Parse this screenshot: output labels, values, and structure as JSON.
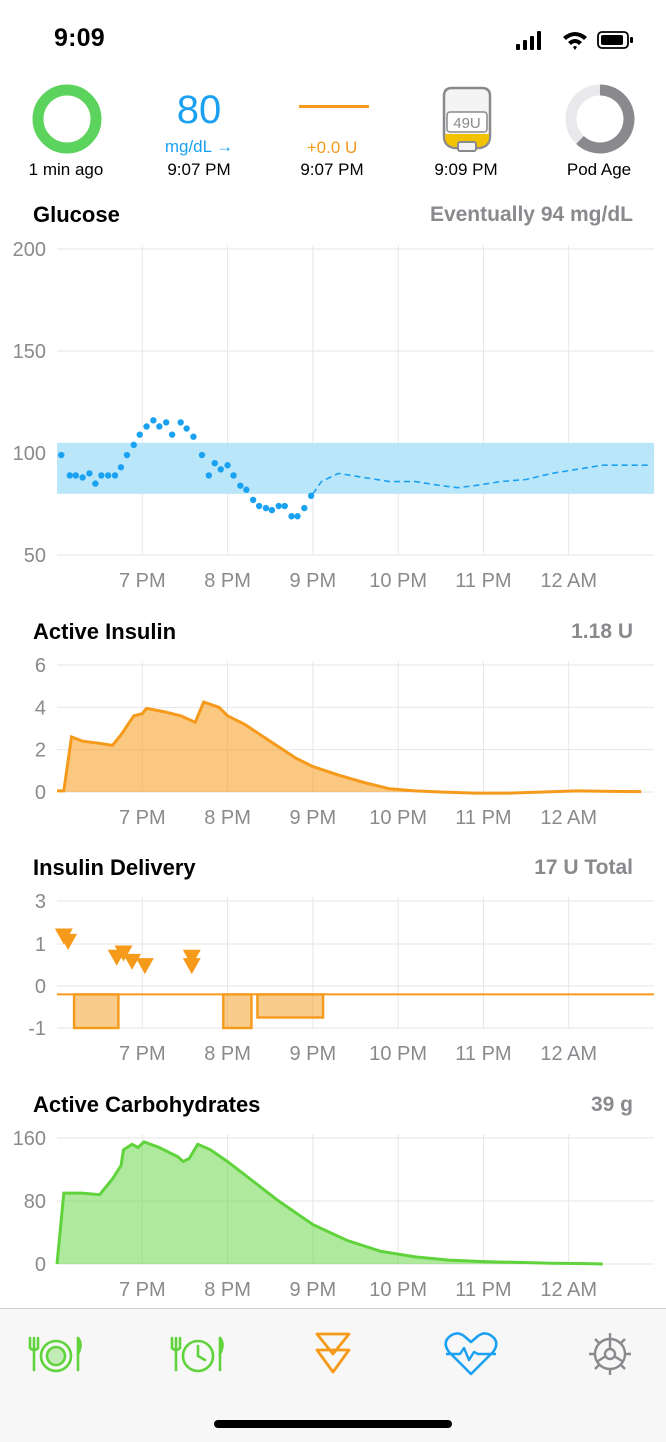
{
  "status_bar": {
    "time": "9:09"
  },
  "hud": {
    "loop": {
      "label": "1 min ago"
    },
    "glucose": {
      "value": "80",
      "unit": "mg/dL →",
      "time": "9:07 PM"
    },
    "basal": {
      "value": "+0.0 U",
      "time": "9:07 PM"
    },
    "reservoir": {
      "level": "49U",
      "time": "9:09 PM"
    },
    "pod": {
      "label": "Pod Age"
    }
  },
  "sections": {
    "glucose": {
      "title": "Glucose",
      "value": "Eventually 94 mg/dL"
    },
    "active_insulin": {
      "title": "Active Insulin",
      "value": "1.18 U"
    },
    "insulin_delivery": {
      "title": "Insulin Delivery",
      "value": "17 U Total"
    },
    "active_carbs": {
      "title": "Active Carbohydrates",
      "value": "39 g"
    }
  },
  "x_tick_labels": [
    "7 PM",
    "8 PM",
    "9 PM",
    "10 PM",
    "11 PM",
    "12 AM"
  ],
  "colors": {
    "glucose": "#1ba1f2",
    "insulin": "#f59a1a",
    "carbs": "#60d33c",
    "target_range": "#b3e3fa",
    "loop_ring": "#5cd35c"
  },
  "tab_bar": [
    {
      "name": "carb-entry-icon"
    },
    {
      "name": "carb-entry-clock-icon"
    },
    {
      "name": "bolus-icon"
    },
    {
      "name": "health-heart-icon"
    },
    {
      "name": "settings-gear-icon"
    }
  ],
  "chart_data": [
    {
      "type": "scatter",
      "title": "Glucose",
      "x_unit": "hours (6.0 = 6 PM, 12.0 = 12 AM)",
      "ylim": [
        50,
        200
      ],
      "yticks": [
        200,
        150,
        100,
        50
      ],
      "xticks": [
        "7 PM",
        "8 PM",
        "9 PM",
        "10 PM",
        "11 PM",
        "12 AM"
      ],
      "target_range": [
        80,
        105
      ],
      "series": [
        {
          "name": "readings",
          "style": "dots",
          "points": [
            [
              6.05,
              99
            ],
            [
              6.15,
              89
            ],
            [
              6.22,
              89
            ],
            [
              6.3,
              88
            ],
            [
              6.38,
              90
            ],
            [
              6.45,
              85
            ],
            [
              6.52,
              89
            ],
            [
              6.6,
              89
            ],
            [
              6.68,
              89
            ],
            [
              6.75,
              93
            ],
            [
              6.82,
              99
            ],
            [
              6.9,
              104
            ],
            [
              6.97,
              109
            ],
            [
              7.05,
              113
            ],
            [
              7.13,
              116
            ],
            [
              7.2,
              113
            ],
            [
              7.28,
              115
            ],
            [
              7.35,
              109
            ],
            [
              7.45,
              115
            ],
            [
              7.52,
              112
            ],
            [
              7.6,
              108
            ],
            [
              7.7,
              99
            ],
            [
              7.78,
              89
            ],
            [
              7.85,
              95
            ],
            [
              7.92,
              92
            ],
            [
              8.0,
              94
            ],
            [
              8.07,
              89
            ],
            [
              8.15,
              84
            ],
            [
              8.22,
              82
            ],
            [
              8.3,
              77
            ],
            [
              8.37,
              74
            ],
            [
              8.45,
              73
            ],
            [
              8.52,
              72
            ],
            [
              8.6,
              74
            ],
            [
              8.67,
              74
            ],
            [
              8.75,
              69
            ],
            [
              8.82,
              69
            ],
            [
              8.9,
              73
            ],
            [
              8.98,
              79
            ]
          ]
        },
        {
          "name": "prediction",
          "style": "dashed",
          "points": [
            [
              9.0,
              80
            ],
            [
              9.1,
              86
            ],
            [
              9.3,
              90
            ],
            [
              9.6,
              88
            ],
            [
              9.9,
              86
            ],
            [
              10.2,
              86
            ],
            [
              10.5,
              84
            ],
            [
              10.7,
              83
            ],
            [
              10.9,
              84
            ],
            [
              11.2,
              86
            ],
            [
              11.5,
              87
            ],
            [
              11.8,
              90
            ],
            [
              12.1,
              92
            ],
            [
              12.4,
              94
            ],
            [
              12.8,
              94
            ],
            [
              12.95,
              94
            ]
          ]
        }
      ]
    },
    {
      "type": "area",
      "title": "Active Insulin",
      "ylim": [
        0,
        6
      ],
      "yticks": [
        6,
        4,
        2,
        0
      ],
      "xticks": [
        "7 PM",
        "8 PM",
        "9 PM",
        "10 PM",
        "11 PM",
        "12 AM"
      ],
      "series": [
        {
          "name": "active_insulin",
          "points": [
            [
              6.0,
              0.05
            ],
            [
              6.08,
              0.05
            ],
            [
              6.17,
              2.6
            ],
            [
              6.3,
              2.4
            ],
            [
              6.5,
              2.3
            ],
            [
              6.65,
              2.2
            ],
            [
              6.75,
              2.7
            ],
            [
              6.9,
              3.6
            ],
            [
              7.0,
              3.7
            ],
            [
              7.05,
              3.95
            ],
            [
              7.25,
              3.8
            ],
            [
              7.45,
              3.6
            ],
            [
              7.62,
              3.3
            ],
            [
              7.72,
              4.25
            ],
            [
              7.9,
              4.0
            ],
            [
              8.0,
              3.6
            ],
            [
              8.2,
              3.2
            ],
            [
              8.5,
              2.4
            ],
            [
              8.8,
              1.6
            ],
            [
              9.0,
              1.2
            ],
            [
              9.3,
              0.8
            ],
            [
              9.6,
              0.45
            ],
            [
              9.9,
              0.15
            ],
            [
              10.2,
              0.05
            ],
            [
              10.5,
              0.0
            ],
            [
              10.9,
              -0.05
            ],
            [
              11.3,
              -0.05
            ],
            [
              11.7,
              0.0
            ],
            [
              12.1,
              0.05
            ],
            [
              12.5,
              0.03
            ],
            [
              12.85,
              0.02
            ]
          ]
        }
      ]
    },
    {
      "type": "bar",
      "title": "Insulin Delivery",
      "ylim": [
        -1,
        3
      ],
      "yticks": [
        3,
        1,
        0,
        -1
      ],
      "xticks": [
        "7 PM",
        "8 PM",
        "9 PM",
        "10 PM",
        "11 PM",
        "12 AM"
      ],
      "scheduled_basal_line": -0.2,
      "temp_basal_segments": [
        [
          6.2,
          6.72,
          -1.0
        ],
        [
          7.95,
          8.28,
          -1.0
        ],
        [
          8.35,
          9.12,
          -0.75
        ]
      ],
      "boluses": [
        [
          6.08,
          1.3
        ],
        [
          6.13,
          1.05
        ],
        [
          6.7,
          0.65
        ],
        [
          6.78,
          0.75
        ],
        [
          6.88,
          0.55
        ],
        [
          7.03,
          0.45
        ],
        [
          7.58,
          0.65
        ],
        [
          7.58,
          0.45
        ]
      ]
    },
    {
      "type": "area",
      "title": "Active Carbohydrates",
      "ylim": [
        0,
        160
      ],
      "yticks": [
        160,
        80,
        0
      ],
      "xticks": [
        "7 PM",
        "8 PM",
        "9 PM",
        "10 PM",
        "11 PM",
        "12 AM"
      ],
      "series": [
        {
          "name": "active_carbs",
          "points": [
            [
              6.0,
              0
            ],
            [
              6.08,
              90
            ],
            [
              6.3,
              90
            ],
            [
              6.5,
              88
            ],
            [
              6.65,
              108
            ],
            [
              6.75,
              125
            ],
            [
              6.78,
              145
            ],
            [
              6.88,
              152
            ],
            [
              6.95,
              148
            ],
            [
              7.02,
              155
            ],
            [
              7.2,
              148
            ],
            [
              7.42,
              136
            ],
            [
              7.48,
              130
            ],
            [
              7.55,
              134
            ],
            [
              7.65,
              152
            ],
            [
              7.8,
              145
            ],
            [
              8.0,
              130
            ],
            [
              8.3,
              105
            ],
            [
              8.6,
              80
            ],
            [
              9.0,
              50
            ],
            [
              9.4,
              30
            ],
            [
              9.8,
              16
            ],
            [
              10.2,
              9
            ],
            [
              10.6,
              5
            ],
            [
              11.0,
              3
            ],
            [
              11.4,
              2
            ],
            [
              11.8,
              1
            ],
            [
              12.2,
              0.5
            ],
            [
              12.4,
              0
            ]
          ]
        }
      ]
    }
  ]
}
